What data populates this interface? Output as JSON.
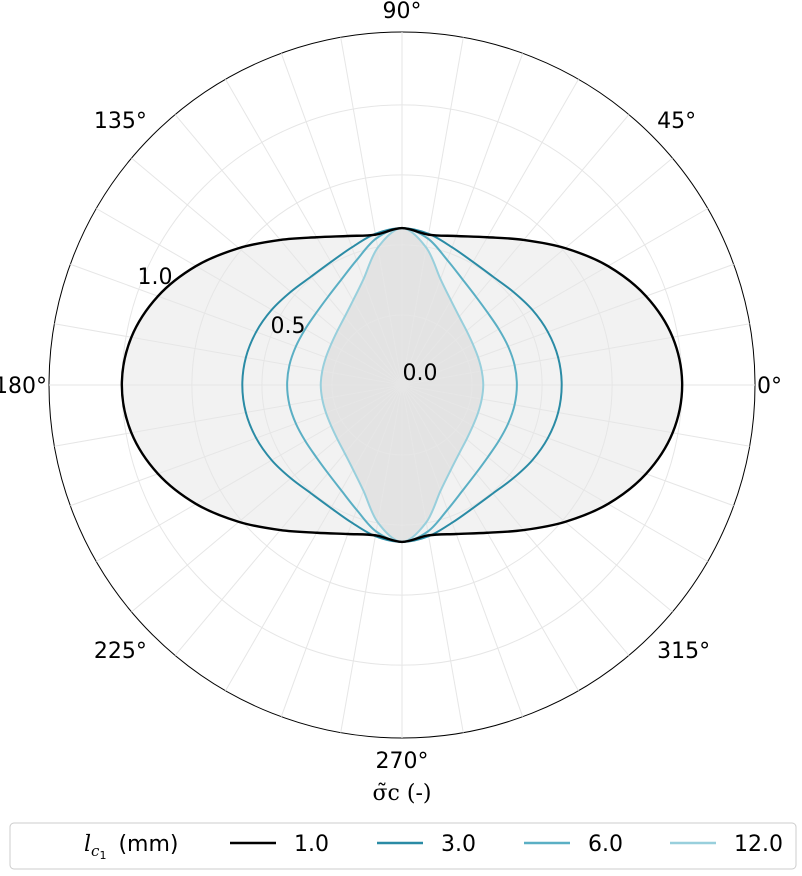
{
  "chart_data": {
    "type": "polar-line",
    "theta_unit": "degrees",
    "r_range": [
      0,
      1.26
    ],
    "r_ticks": [
      0.0,
      0.5,
      1.0
    ],
    "r_tick_labels": [
      "0.0",
      "0.5",
      "1.0"
    ],
    "theta_ticks": [
      0,
      45,
      90,
      135,
      180,
      225,
      270,
      315
    ],
    "theta_tick_labels": [
      "0°",
      "45°",
      "90°",
      "135°",
      "180°",
      "225°",
      "270°",
      "315°"
    ],
    "grid": true,
    "xlabel": "σ̃c (-)",
    "legend": {
      "placement": "bottom",
      "title": "lc1  (mm)",
      "title_main": "l",
      "title_sub": "c",
      "title_subsub": "1",
      "title_unit": "(mm)"
    },
    "series": [
      {
        "name": "1.0",
        "color": "#000000",
        "fill": "#f2f2f2",
        "theta": [
          0,
          10,
          20,
          30,
          40,
          50,
          60,
          70,
          80,
          90,
          100,
          110,
          120,
          130,
          140,
          150,
          160,
          170,
          180,
          190,
          200,
          210,
          220,
          230,
          240,
          250,
          260,
          270,
          280,
          290,
          300,
          310,
          320,
          330,
          340,
          350,
          360
        ],
        "r": [
          1.0,
          0.981,
          0.927,
          0.849,
          0.76,
          0.676,
          0.609,
          0.566,
          0.545,
          0.56,
          0.545,
          0.566,
          0.609,
          0.676,
          0.76,
          0.849,
          0.927,
          0.981,
          1.0,
          0.981,
          0.927,
          0.849,
          0.76,
          0.676,
          0.609,
          0.566,
          0.545,
          0.56,
          0.545,
          0.566,
          0.609,
          0.676,
          0.76,
          0.849,
          0.927,
          0.981,
          1.0
        ]
      },
      {
        "name": "3.0",
        "color": "#2a8ba5",
        "theta": [
          0,
          10,
          20,
          30,
          40,
          50,
          60,
          70,
          80,
          90,
          100,
          110,
          120,
          130,
          140,
          150,
          160,
          170,
          180,
          190,
          200,
          210,
          220,
          230,
          240,
          250,
          260,
          270,
          280,
          290,
          300,
          310,
          320,
          330,
          340,
          350,
          360
        ],
        "r": [
          0.57,
          0.566,
          0.554,
          0.537,
          0.518,
          0.505,
          0.507,
          0.523,
          0.548,
          0.56,
          0.548,
          0.523,
          0.507,
          0.505,
          0.518,
          0.537,
          0.554,
          0.566,
          0.57,
          0.566,
          0.554,
          0.537,
          0.518,
          0.505,
          0.507,
          0.523,
          0.548,
          0.56,
          0.548,
          0.523,
          0.507,
          0.505,
          0.518,
          0.537,
          0.554,
          0.566,
          0.57
        ]
      },
      {
        "name": "6.0",
        "color": "#5aafc4",
        "theta": [
          0,
          10,
          20,
          30,
          40,
          50,
          60,
          70,
          80,
          90,
          100,
          110,
          120,
          130,
          140,
          150,
          160,
          170,
          180,
          190,
          200,
          210,
          220,
          230,
          240,
          250,
          260,
          270,
          280,
          290,
          300,
          310,
          320,
          330,
          340,
          350,
          360
        ],
        "r": [
          0.41,
          0.408,
          0.403,
          0.399,
          0.4,
          0.411,
          0.434,
          0.474,
          0.531,
          0.56,
          0.531,
          0.474,
          0.434,
          0.411,
          0.4,
          0.399,
          0.403,
          0.408,
          0.41,
          0.408,
          0.403,
          0.399,
          0.4,
          0.411,
          0.434,
          0.474,
          0.531,
          0.56,
          0.531,
          0.474,
          0.434,
          0.411,
          0.4,
          0.399,
          0.403,
          0.408,
          0.41
        ]
      },
      {
        "name": "12.0",
        "color": "#98cfdc",
        "theta": [
          0,
          10,
          20,
          30,
          40,
          50,
          60,
          70,
          80,
          90,
          100,
          110,
          120,
          130,
          140,
          150,
          160,
          170,
          180,
          190,
          200,
          210,
          220,
          230,
          240,
          250,
          260,
          270,
          280,
          290,
          300,
          310,
          320,
          330,
          340,
          350,
          360
        ],
        "r": [
          0.29,
          0.289,
          0.289,
          0.292,
          0.301,
          0.318,
          0.349,
          0.402,
          0.498,
          0.56,
          0.498,
          0.402,
          0.349,
          0.318,
          0.301,
          0.292,
          0.289,
          0.289,
          0.29,
          0.289,
          0.289,
          0.292,
          0.301,
          0.318,
          0.349,
          0.402,
          0.498,
          0.56,
          0.498,
          0.402,
          0.349,
          0.318,
          0.301,
          0.292,
          0.289,
          0.289,
          0.29
        ]
      }
    ]
  }
}
